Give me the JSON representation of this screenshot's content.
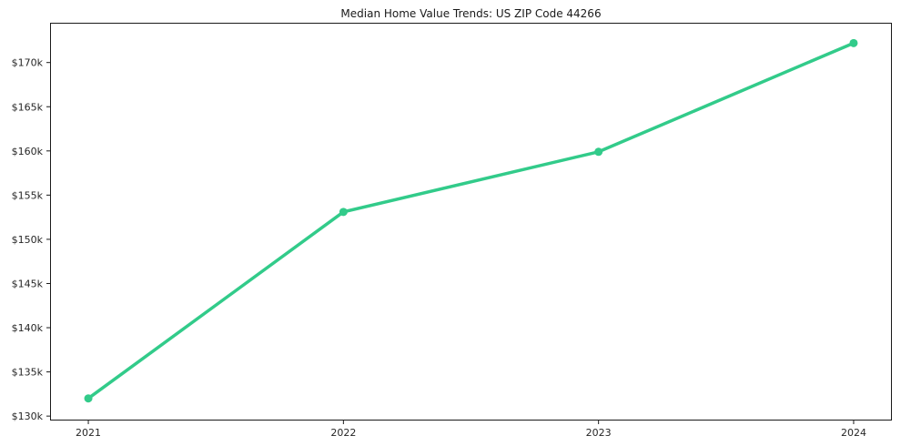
{
  "title": "Median Home Value Trends: US ZIP Code 44266",
  "chart_data": {
    "type": "line",
    "title": "Median Home Value Trends: US ZIP Code 44266",
    "x": [
      2021,
      2022,
      2023,
      2024
    ],
    "x_tick_labels": [
      "2021",
      "2022",
      "2023",
      "2024"
    ],
    "series": [
      {
        "name": "Median Home Value",
        "values": [
          132000,
          153100,
          159900,
          172200
        ]
      }
    ],
    "y_ticks": [
      130000,
      135000,
      140000,
      145000,
      150000,
      155000,
      160000,
      165000,
      170000
    ],
    "y_tick_labels": [
      "$130k",
      "$135k",
      "$140k",
      "$145k",
      "$150k",
      "$155k",
      "$160k",
      "$165k",
      "$170k"
    ],
    "xlim": [
      2020.85,
      2024.15
    ],
    "ylim": [
      129500,
      174500
    ],
    "grid": false,
    "legend": "none",
    "line_color": "#32cb8a",
    "axis_color": "#1a1a1a",
    "tick_label_color": "#262626",
    "marker": "circle"
  }
}
